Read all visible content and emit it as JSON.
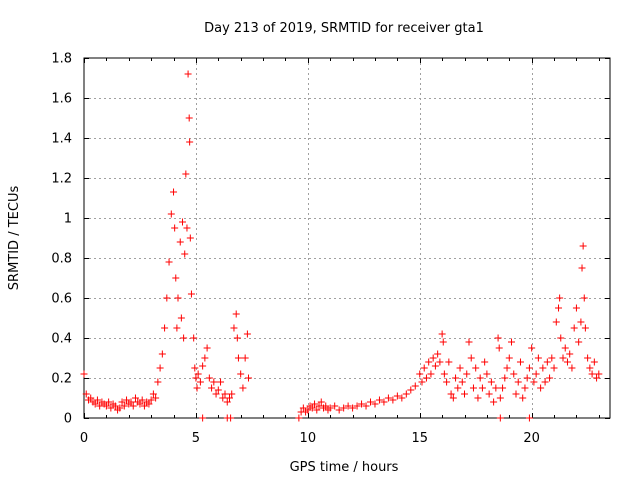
{
  "chart_data": {
    "type": "scatter",
    "title": "Day 213 of 2019, SRMTID for receiver gta1",
    "xlabel": "GPS time / hours",
    "ylabel": "SRMTID / TECUs",
    "xlim": [
      0,
      23.5
    ],
    "ylim": [
      0,
      1.8
    ],
    "xticks": [
      0,
      5,
      10,
      15,
      20
    ],
    "xtick_labels": [
      "0",
      "5",
      "10",
      "15",
      "20"
    ],
    "yticks": [
      0,
      0.2,
      0.4,
      0.6,
      0.8,
      1.0,
      1.2,
      1.4,
      1.6,
      1.8
    ],
    "ytick_labels": [
      "0",
      "0.2",
      "0.4",
      "0.6",
      "0.8",
      "1",
      "1.2",
      "1.4",
      "1.6",
      "1.8"
    ],
    "grid": true,
    "marker": "+",
    "color": "#ff0000",
    "series": [
      {
        "name": "SRMTID",
        "points": [
          [
            0.0,
            0.22
          ],
          [
            0.1,
            0.12
          ],
          [
            0.2,
            0.09
          ],
          [
            0.3,
            0.1
          ],
          [
            0.4,
            0.08
          ],
          [
            0.5,
            0.07
          ],
          [
            0.6,
            0.09
          ],
          [
            0.7,
            0.06
          ],
          [
            0.8,
            0.08
          ],
          [
            0.9,
            0.07
          ],
          [
            1.0,
            0.06
          ],
          [
            1.1,
            0.08
          ],
          [
            1.2,
            0.05
          ],
          [
            1.3,
            0.07
          ],
          [
            1.4,
            0.06
          ],
          [
            1.5,
            0.04
          ],
          [
            1.6,
            0.05
          ],
          [
            1.7,
            0.08
          ],
          [
            1.8,
            0.06
          ],
          [
            1.9,
            0.09
          ],
          [
            2.0,
            0.07
          ],
          [
            2.1,
            0.08
          ],
          [
            2.2,
            0.06
          ],
          [
            2.3,
            0.1
          ],
          [
            2.4,
            0.08
          ],
          [
            2.5,
            0.07
          ],
          [
            2.6,
            0.09
          ],
          [
            2.7,
            0.06
          ],
          [
            2.8,
            0.08
          ],
          [
            2.9,
            0.07
          ],
          [
            3.0,
            0.09
          ],
          [
            3.1,
            0.12
          ],
          [
            3.2,
            0.1
          ],
          [
            3.3,
            0.18
          ],
          [
            3.4,
            0.25
          ],
          [
            3.5,
            0.32
          ],
          [
            3.6,
            0.45
          ],
          [
            3.7,
            0.6
          ],
          [
            3.8,
            0.78
          ],
          [
            3.9,
            1.02
          ],
          [
            4.0,
            1.13
          ],
          [
            4.05,
            0.95
          ],
          [
            4.1,
            0.7
          ],
          [
            4.15,
            0.45
          ],
          [
            4.2,
            0.6
          ],
          [
            4.3,
            0.88
          ],
          [
            4.35,
            0.5
          ],
          [
            4.4,
            0.98
          ],
          [
            4.45,
            0.4
          ],
          [
            4.5,
            0.82
          ],
          [
            4.55,
            1.22
          ],
          [
            4.6,
            0.95
          ],
          [
            4.65,
            1.72
          ],
          [
            4.7,
            1.5
          ],
          [
            4.72,
            1.38
          ],
          [
            4.75,
            0.9
          ],
          [
            4.8,
            0.62
          ],
          [
            4.9,
            0.4
          ],
          [
            4.95,
            0.25
          ],
          [
            5.0,
            0.2
          ],
          [
            5.05,
            0.15
          ],
          [
            5.1,
            0.22
          ],
          [
            5.2,
            0.18
          ],
          [
            5.3,
            0.26
          ],
          [
            5.4,
            0.3
          ],
          [
            5.5,
            0.35
          ],
          [
            5.6,
            0.2
          ],
          [
            5.7,
            0.15
          ],
          [
            5.8,
            0.18
          ],
          [
            5.9,
            0.12
          ],
          [
            6.0,
            0.14
          ],
          [
            6.1,
            0.18
          ],
          [
            6.2,
            0.1
          ],
          [
            6.3,
            0.12
          ],
          [
            6.4,
            0.08
          ],
          [
            6.5,
            0.1
          ],
          [
            6.6,
            0.12
          ],
          [
            6.7,
            0.45
          ],
          [
            6.8,
            0.52
          ],
          [
            6.85,
            0.4
          ],
          [
            6.9,
            0.3
          ],
          [
            7.0,
            0.22
          ],
          [
            7.1,
            0.15
          ],
          [
            7.2,
            0.3
          ],
          [
            7.3,
            0.42
          ],
          [
            7.35,
            0.2
          ],
          [
            5.3,
            0.0
          ],
          [
            6.4,
            0.0
          ],
          [
            6.55,
            0.0
          ],
          [
            9.6,
            0.0
          ],
          [
            9.7,
            0.03
          ],
          [
            9.8,
            0.05
          ],
          [
            9.9,
            0.03
          ],
          [
            10.0,
            0.04
          ],
          [
            10.1,
            0.06
          ],
          [
            10.2,
            0.05
          ],
          [
            10.3,
            0.07
          ],
          [
            10.4,
            0.04
          ],
          [
            10.5,
            0.06
          ],
          [
            10.6,
            0.08
          ],
          [
            10.7,
            0.05
          ],
          [
            10.8,
            0.06
          ],
          [
            10.9,
            0.04
          ],
          [
            11.0,
            0.05
          ],
          [
            11.2,
            0.06
          ],
          [
            11.4,
            0.04
          ],
          [
            11.6,
            0.05
          ],
          [
            11.8,
            0.06
          ],
          [
            12.0,
            0.05
          ],
          [
            12.2,
            0.06
          ],
          [
            12.4,
            0.07
          ],
          [
            12.6,
            0.06
          ],
          [
            12.8,
            0.08
          ],
          [
            13.0,
            0.07
          ],
          [
            13.2,
            0.09
          ],
          [
            13.4,
            0.08
          ],
          [
            13.6,
            0.1
          ],
          [
            13.8,
            0.09
          ],
          [
            14.0,
            0.11
          ],
          [
            14.2,
            0.1
          ],
          [
            14.4,
            0.12
          ],
          [
            14.6,
            0.14
          ],
          [
            14.8,
            0.16
          ],
          [
            15.0,
            0.22
          ],
          [
            15.1,
            0.18
          ],
          [
            15.2,
            0.25
          ],
          [
            15.3,
            0.2
          ],
          [
            15.4,
            0.28
          ],
          [
            15.5,
            0.22
          ],
          [
            15.6,
            0.3
          ],
          [
            15.7,
            0.26
          ],
          [
            15.8,
            0.32
          ],
          [
            15.9,
            0.28
          ],
          [
            16.0,
            0.42
          ],
          [
            16.05,
            0.38
          ],
          [
            16.1,
            0.22
          ],
          [
            16.2,
            0.18
          ],
          [
            16.3,
            0.28
          ],
          [
            16.4,
            0.12
          ],
          [
            16.5,
            0.1
          ],
          [
            16.6,
            0.2
          ],
          [
            16.7,
            0.15
          ],
          [
            16.8,
            0.25
          ],
          [
            16.9,
            0.18
          ],
          [
            17.0,
            0.12
          ],
          [
            17.1,
            0.22
          ],
          [
            17.2,
            0.38
          ],
          [
            17.3,
            0.3
          ],
          [
            17.4,
            0.15
          ],
          [
            17.5,
            0.25
          ],
          [
            17.6,
            0.1
          ],
          [
            17.7,
            0.2
          ],
          [
            17.8,
            0.15
          ],
          [
            17.9,
            0.28
          ],
          [
            18.0,
            0.22
          ],
          [
            18.1,
            0.12
          ],
          [
            18.2,
            0.18
          ],
          [
            18.3,
            0.08
          ],
          [
            18.4,
            0.15
          ],
          [
            18.5,
            0.4
          ],
          [
            18.55,
            0.35
          ],
          [
            18.6,
            0.1
          ],
          [
            18.7,
            0.15
          ],
          [
            18.8,
            0.2
          ],
          [
            18.9,
            0.25
          ],
          [
            19.0,
            0.3
          ],
          [
            19.1,
            0.38
          ],
          [
            19.2,
            0.22
          ],
          [
            19.3,
            0.12
          ],
          [
            19.4,
            0.18
          ],
          [
            19.5,
            0.28
          ],
          [
            19.6,
            0.1
          ],
          [
            19.7,
            0.15
          ],
          [
            19.8,
            0.2
          ],
          [
            19.9,
            0.25
          ],
          [
            20.0,
            0.35
          ],
          [
            20.1,
            0.18
          ],
          [
            20.2,
            0.22
          ],
          [
            20.3,
            0.3
          ],
          [
            20.4,
            0.15
          ],
          [
            20.5,
            0.25
          ],
          [
            20.6,
            0.18
          ],
          [
            20.7,
            0.28
          ],
          [
            20.8,
            0.2
          ],
          [
            20.9,
            0.3
          ],
          [
            21.0,
            0.25
          ],
          [
            21.1,
            0.48
          ],
          [
            21.2,
            0.55
          ],
          [
            21.25,
            0.6
          ],
          [
            21.3,
            0.4
          ],
          [
            21.4,
            0.3
          ],
          [
            21.5,
            0.35
          ],
          [
            21.6,
            0.28
          ],
          [
            21.7,
            0.32
          ],
          [
            21.8,
            0.25
          ],
          [
            21.9,
            0.45
          ],
          [
            22.0,
            0.55
          ],
          [
            22.1,
            0.38
          ],
          [
            22.2,
            0.48
          ],
          [
            22.25,
            0.75
          ],
          [
            22.3,
            0.86
          ],
          [
            22.35,
            0.6
          ],
          [
            22.4,
            0.45
          ],
          [
            22.5,
            0.3
          ],
          [
            22.6,
            0.25
          ],
          [
            22.7,
            0.22
          ],
          [
            22.8,
            0.28
          ],
          [
            22.9,
            0.2
          ],
          [
            23.0,
            0.22
          ],
          [
            18.6,
            0.0
          ],
          [
            19.9,
            0.0
          ]
        ]
      }
    ]
  }
}
